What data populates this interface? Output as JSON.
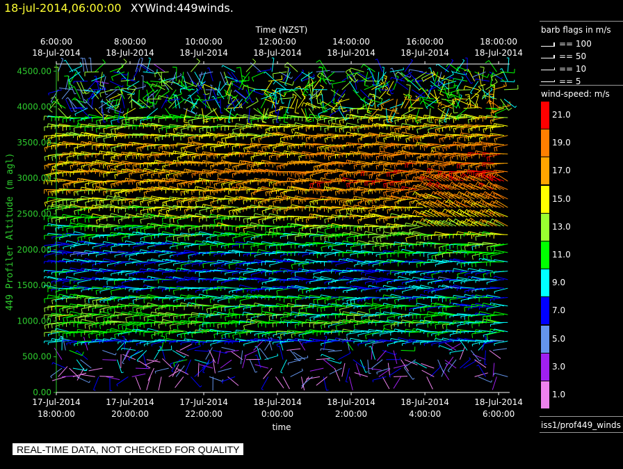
{
  "header": {
    "date_time": "18-jul-2014,06:00:00",
    "plot_name": "XYWind:449winds."
  },
  "chart_data": {
    "type": "wind-barb",
    "top_axis_title": "Time (NZST)",
    "top_ticks": [
      {
        "time": "6:00:00",
        "date": "18-Jul-2014"
      },
      {
        "time": "8:00:00",
        "date": "18-Jul-2014"
      },
      {
        "time": "10:00:00",
        "date": "18-Jul-2014"
      },
      {
        "time": "12:00:00",
        "date": "18-Jul-2014"
      },
      {
        "time": "14:00:00",
        "date": "18-Jul-2014"
      },
      {
        "time": "16:00:00",
        "date": "18-Jul-2014"
      },
      {
        "time": "18:00:00",
        "date": "18-Jul-2014"
      }
    ],
    "bottom_axis_title": "time",
    "bottom_ticks": [
      {
        "date": "17-Jul-2014",
        "time": "18:00:00"
      },
      {
        "date": "17-Jul-2014",
        "time": "20:00:00"
      },
      {
        "date": "17-Jul-2014",
        "time": "22:00:00"
      },
      {
        "date": "18-Jul-2014",
        "time": "0:00:00"
      },
      {
        "date": "18-Jul-2014",
        "time": "2:00:00"
      },
      {
        "date": "18-Jul-2014",
        "time": "4:00:00"
      },
      {
        "date": "18-Jul-2014",
        "time": "6:00:00"
      }
    ],
    "x_hours_utc": [
      18,
      20,
      22,
      24,
      26,
      28,
      30
    ],
    "xlim_hours_utc": [
      18,
      30.3
    ],
    "ylabel": "449 Profiler Altitude (m agl)",
    "yticks": [
      "0.00",
      "500.00",
      "1000.00",
      "1500.00",
      "2000.00",
      "2500.00",
      "3000.00",
      "3500.00",
      "4000.00",
      "4500.00"
    ],
    "ylim": [
      0,
      4600
    ],
    "barb_levels_m": [
      220,
      340,
      460,
      590,
      720,
      850,
      980,
      1090,
      1210,
      1330,
      1460,
      1580,
      1700,
      1830,
      1960,
      2080,
      2210,
      2330,
      2460,
      2590,
      2710,
      2840,
      2960,
      3090,
      3210,
      3340,
      3470,
      3600,
      3730,
      3850,
      3980,
      4110,
      4240,
      4360,
      4490
    ],
    "barb_spacing_hours": 0.1,
    "speed_profile": {
      "altitude_m": [
        200,
        700,
        900,
        1200,
        1500,
        2000,
        2500,
        3000,
        3500,
        4000,
        4500
      ],
      "speed_ms_start": [
        2,
        8,
        12,
        13,
        9,
        7,
        12,
        16,
        15,
        9,
        8
      ],
      "speed_ms_end": [
        3,
        7,
        11,
        9,
        7,
        11,
        17,
        20,
        18,
        14,
        10
      ]
    },
    "barb_flags": {
      "title": "barb flags in m/s",
      "items": [
        "== 100",
        "== 50",
        "== 10",
        "== 5"
      ]
    },
    "colorbar": {
      "title": "wind-speed: m/s",
      "labels": [
        "21.0",
        "19.0",
        "17.0",
        "15.0",
        "13.0",
        "11.0",
        "9.0",
        "7.0",
        "5.0",
        "3.0",
        "1.0"
      ],
      "colors": [
        "#ff0000",
        "#ff7f00",
        "#ffa500",
        "#ffff00",
        "#9aff30",
        "#00ff00",
        "#00ffff",
        "#0000ff",
        "#6495ed",
        "#a020f0",
        "#ee82ee"
      ]
    }
  },
  "footer": {
    "source": "iss1/prof449_winds",
    "quality_note": "REAL-TIME DATA, NOT CHECKED FOR QUALITY"
  }
}
